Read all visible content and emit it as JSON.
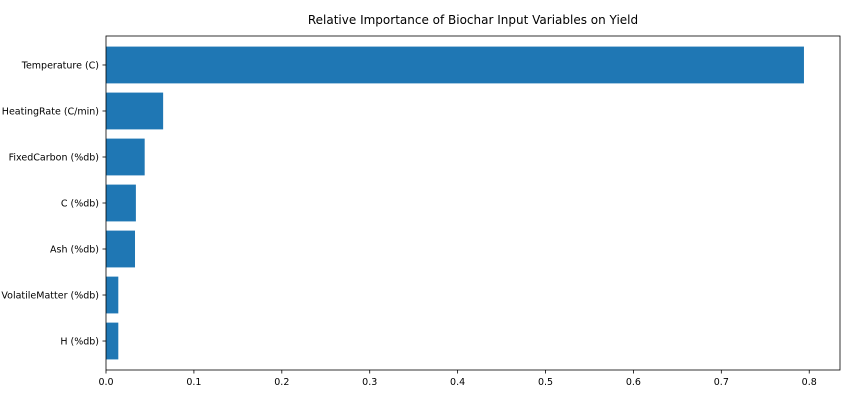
{
  "chart_data": {
    "type": "bar",
    "orientation": "horizontal",
    "title": "Relative Importance of Biochar Input Variables on Yield",
    "xlabel": "",
    "ylabel": "",
    "categories": [
      "Temperature (C)",
      "HeatingRate (C/min)",
      "FixedCarbon (%db)",
      "C (%db)",
      "Ash (%db)",
      "VolatileMatter (%db)",
      "H (%db)"
    ],
    "values": [
      0.794,
      0.065,
      0.044,
      0.034,
      0.033,
      0.014,
      0.014
    ],
    "xlim": [
      0,
      0.835
    ],
    "xticks": [
      "0.0",
      "0.1",
      "0.2",
      "0.3",
      "0.4",
      "0.5",
      "0.6",
      "0.7",
      "0.8"
    ],
    "grid": false,
    "legend": "none",
    "colors": {
      "bar": "#1f77b4",
      "axis": "#000000"
    }
  }
}
